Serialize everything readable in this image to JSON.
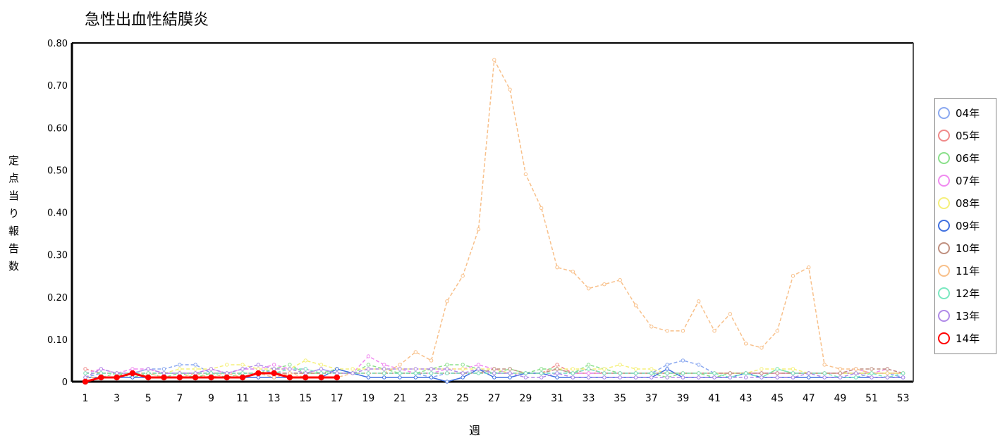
{
  "chart_data": {
    "type": "line",
    "title": "急性出血性結膜炎",
    "xlabel": "週",
    "ylabel": "定点当り報告数",
    "ylim": [
      0,
      0.8
    ],
    "yticks": [
      0,
      0.1,
      0.2,
      0.3,
      0.4,
      0.5,
      0.6,
      0.7,
      0.8
    ],
    "ytick_labels": [
      "0",
      "0.10",
      "0.20",
      "0.30",
      "0.40",
      "0.50",
      "0.60",
      "0.70",
      "0.80"
    ],
    "xlim": [
      1,
      53
    ],
    "xticks": [
      1,
      3,
      5,
      7,
      9,
      11,
      13,
      15,
      17,
      19,
      21,
      23,
      25,
      27,
      29,
      31,
      33,
      35,
      37,
      39,
      41,
      43,
      45,
      47,
      49,
      51,
      53
    ],
    "grid": true,
    "legend_position": "right",
    "series": [
      {
        "name": "04年",
        "color": "#8aa8f0",
        "dashed": true,
        "values": [
          0.01,
          0.02,
          0.02,
          0.02,
          0.03,
          0.03,
          0.04,
          0.04,
          0.02,
          0.02,
          0.03,
          0.03,
          0.02,
          0.02,
          0.02,
          0.03,
          0.02,
          0.02,
          0.02,
          0.02,
          0.02,
          0.02,
          0.01,
          0.02,
          0.02,
          0.02,
          0.02,
          0.02,
          0.02,
          0.02,
          0.02,
          0.02,
          0.02,
          0.02,
          0.02,
          0.02,
          0.02,
          0.04,
          0.05,
          0.04,
          0.02,
          0.02,
          0.02,
          0.02,
          0.02,
          0.02,
          0.02,
          0.02,
          0.02,
          0.02,
          0.02,
          0.02,
          0.01
        ]
      },
      {
        "name": "05年",
        "color": "#f08a8a",
        "dashed": true,
        "values": [
          0.03,
          0.02,
          0.02,
          0.02,
          0.02,
          0.02,
          0.02,
          0.02,
          0.02,
          0.02,
          0.02,
          0.02,
          0.02,
          0.02,
          0.02,
          0.02,
          0.02,
          0.02,
          0.02,
          0.02,
          0.02,
          0.02,
          0.02,
          0.02,
          0.02,
          0.02,
          0.02,
          0.02,
          0.02,
          0.02,
          0.04,
          0.02,
          0.02,
          0.02,
          0.02,
          0.02,
          0.02,
          0.02,
          0.02,
          0.02,
          0.02,
          0.02,
          0.02,
          0.02,
          0.02,
          0.02,
          0.02,
          0.02,
          0.02,
          0.02,
          0.02,
          0.02,
          0.02
        ]
      },
      {
        "name": "06年",
        "color": "#8ae08a",
        "dashed": true,
        "values": [
          0.01,
          0.01,
          0.02,
          0.01,
          0.02,
          0.01,
          0.02,
          0.01,
          0.02,
          0.01,
          0.02,
          0.02,
          0.03,
          0.04,
          0.02,
          0.02,
          0.03,
          0.02,
          0.04,
          0.03,
          0.02,
          0.02,
          0.03,
          0.04,
          0.04,
          0.03,
          0.02,
          0.03,
          0.02,
          0.03,
          0.03,
          0.02,
          0.04,
          0.03,
          0.02,
          0.02,
          0.02,
          0.01,
          0.02,
          0.02,
          0.01,
          0.02,
          0.02,
          0.01,
          0.03,
          0.02,
          0.02,
          0.02,
          0.02,
          0.02,
          0.02,
          0.02,
          0.02
        ]
      },
      {
        "name": "07年",
        "color": "#f08af0",
        "dashed": true,
        "values": [
          0.02,
          0.03,
          0.02,
          0.03,
          0.03,
          0.02,
          0.02,
          0.02,
          0.03,
          0.02,
          0.03,
          0.03,
          0.04,
          0.03,
          0.03,
          0.02,
          0.02,
          0.02,
          0.06,
          0.04,
          0.03,
          0.02,
          0.02,
          0.03,
          0.03,
          0.04,
          0.03,
          0.02,
          0.02,
          0.02,
          0.03,
          0.02,
          0.02,
          0.02,
          0.02,
          0.02,
          0.02,
          0.02,
          0.02,
          0.02,
          0.02,
          0.02,
          0.02,
          0.02,
          0.02,
          0.02,
          0.02,
          0.02,
          0.02,
          0.03,
          0.02,
          0.03,
          0.02
        ]
      },
      {
        "name": "08年",
        "color": "#f5f07a",
        "dashed": true,
        "values": [
          0.02,
          0.02,
          0.02,
          0.02,
          0.02,
          0.02,
          0.03,
          0.03,
          0.03,
          0.04,
          0.04,
          0.03,
          0.03,
          0.03,
          0.05,
          0.04,
          0.03,
          0.03,
          0.03,
          0.03,
          0.03,
          0.03,
          0.03,
          0.03,
          0.03,
          0.03,
          0.03,
          0.02,
          0.02,
          0.02,
          0.03,
          0.03,
          0.03,
          0.03,
          0.04,
          0.03,
          0.03,
          0.02,
          0.02,
          0.02,
          0.02,
          0.02,
          0.02,
          0.03,
          0.03,
          0.03,
          0.02,
          0.02,
          0.02,
          0.02,
          0.02,
          0.02,
          0.02
        ]
      },
      {
        "name": "09年",
        "color": "#4070e0",
        "dashed": false,
        "values": [
          0.01,
          0.01,
          0.01,
          0.01,
          0.01,
          0.01,
          0.01,
          0.01,
          0.01,
          0.01,
          0.01,
          0.01,
          0.01,
          0.01,
          0.01,
          0.01,
          0.03,
          0.02,
          0.01,
          0.01,
          0.01,
          0.01,
          0.01,
          0.0,
          0.01,
          0.03,
          0.01,
          0.01,
          0.02,
          0.02,
          0.01,
          0.01,
          0.01,
          0.01,
          0.01,
          0.01,
          0.01,
          0.03,
          0.01,
          0.01,
          0.01,
          0.01,
          0.02,
          0.01,
          0.01,
          0.01,
          0.01,
          0.01,
          0.01,
          0.01,
          0.01,
          0.01,
          0.01
        ]
      },
      {
        "name": "10年",
        "color": "#c09080",
        "dashed": true,
        "values": [
          0.02,
          0.02,
          0.02,
          0.02,
          0.02,
          0.02,
          0.02,
          0.02,
          0.02,
          0.02,
          0.02,
          0.02,
          0.02,
          0.02,
          0.02,
          0.02,
          0.02,
          0.02,
          0.02,
          0.02,
          0.02,
          0.02,
          0.02,
          0.02,
          0.02,
          0.02,
          0.03,
          0.03,
          0.02,
          0.02,
          0.03,
          0.02,
          0.03,
          0.02,
          0.02,
          0.02,
          0.02,
          0.02,
          0.02,
          0.02,
          0.02,
          0.02,
          0.02,
          0.02,
          0.02,
          0.02,
          0.02,
          0.02,
          0.02,
          0.03,
          0.03,
          0.03,
          0.02
        ]
      },
      {
        "name": "11年",
        "color": "#f8c08a",
        "dashed": true,
        "values": [
          0.01,
          0.01,
          0.01,
          0.02,
          0.02,
          0.01,
          0.01,
          0.02,
          0.01,
          0.02,
          0.01,
          0.02,
          0.01,
          0.02,
          0.01,
          0.01,
          0.01,
          0.02,
          0.02,
          0.02,
          0.04,
          0.07,
          0.05,
          0.19,
          0.25,
          0.36,
          0.76,
          0.69,
          0.49,
          0.41,
          0.27,
          0.26,
          0.22,
          0.23,
          0.24,
          0.18,
          0.13,
          0.12,
          0.12,
          0.19,
          0.12,
          0.16,
          0.09,
          0.08,
          0.12,
          0.25,
          0.27,
          0.04,
          0.03,
          0.03,
          0.02,
          0.02,
          0.02
        ]
      },
      {
        "name": "12年",
        "color": "#7ae8c0",
        "dashed": true,
        "values": [
          0.02,
          0.02,
          0.02,
          0.02,
          0.02,
          0.02,
          0.02,
          0.02,
          0.02,
          0.02,
          0.02,
          0.02,
          0.02,
          0.03,
          0.03,
          0.02,
          0.02,
          0.02,
          0.02,
          0.02,
          0.02,
          0.02,
          0.02,
          0.02,
          0.02,
          0.02,
          0.02,
          0.02,
          0.02,
          0.02,
          0.02,
          0.02,
          0.03,
          0.02,
          0.02,
          0.02,
          0.02,
          0.02,
          0.02,
          0.02,
          0.02,
          0.01,
          0.02,
          0.01,
          0.03,
          0.02,
          0.02,
          0.02,
          0.01,
          0.01,
          0.02,
          0.01,
          0.02
        ]
      },
      {
        "name": "13年",
        "color": "#b08ae8",
        "dashed": true,
        "values": [
          0.01,
          0.03,
          0.02,
          0.02,
          0.03,
          0.02,
          0.02,
          0.02,
          0.03,
          0.02,
          0.03,
          0.04,
          0.03,
          0.03,
          0.02,
          0.03,
          0.02,
          0.02,
          0.03,
          0.03,
          0.03,
          0.03,
          0.03,
          0.03,
          0.02,
          0.03,
          0.02,
          0.02,
          0.01,
          0.01,
          0.02,
          0.01,
          0.01,
          0.01,
          0.01,
          0.01,
          0.01,
          0.01,
          0.01,
          0.01,
          0.01,
          0.01,
          0.01,
          0.01,
          0.01,
          0.01,
          0.02,
          0.01,
          0.01,
          0.02,
          0.01,
          0.01,
          0.01
        ]
      },
      {
        "name": "14年",
        "color": "#ff0000",
        "dashed": false,
        "values": [
          0.0,
          0.01,
          0.01,
          0.02,
          0.01,
          0.01,
          0.01,
          0.01,
          0.01,
          0.01,
          0.01,
          0.02,
          0.02,
          0.01,
          0.01,
          0.01,
          0.01
        ]
      }
    ]
  }
}
